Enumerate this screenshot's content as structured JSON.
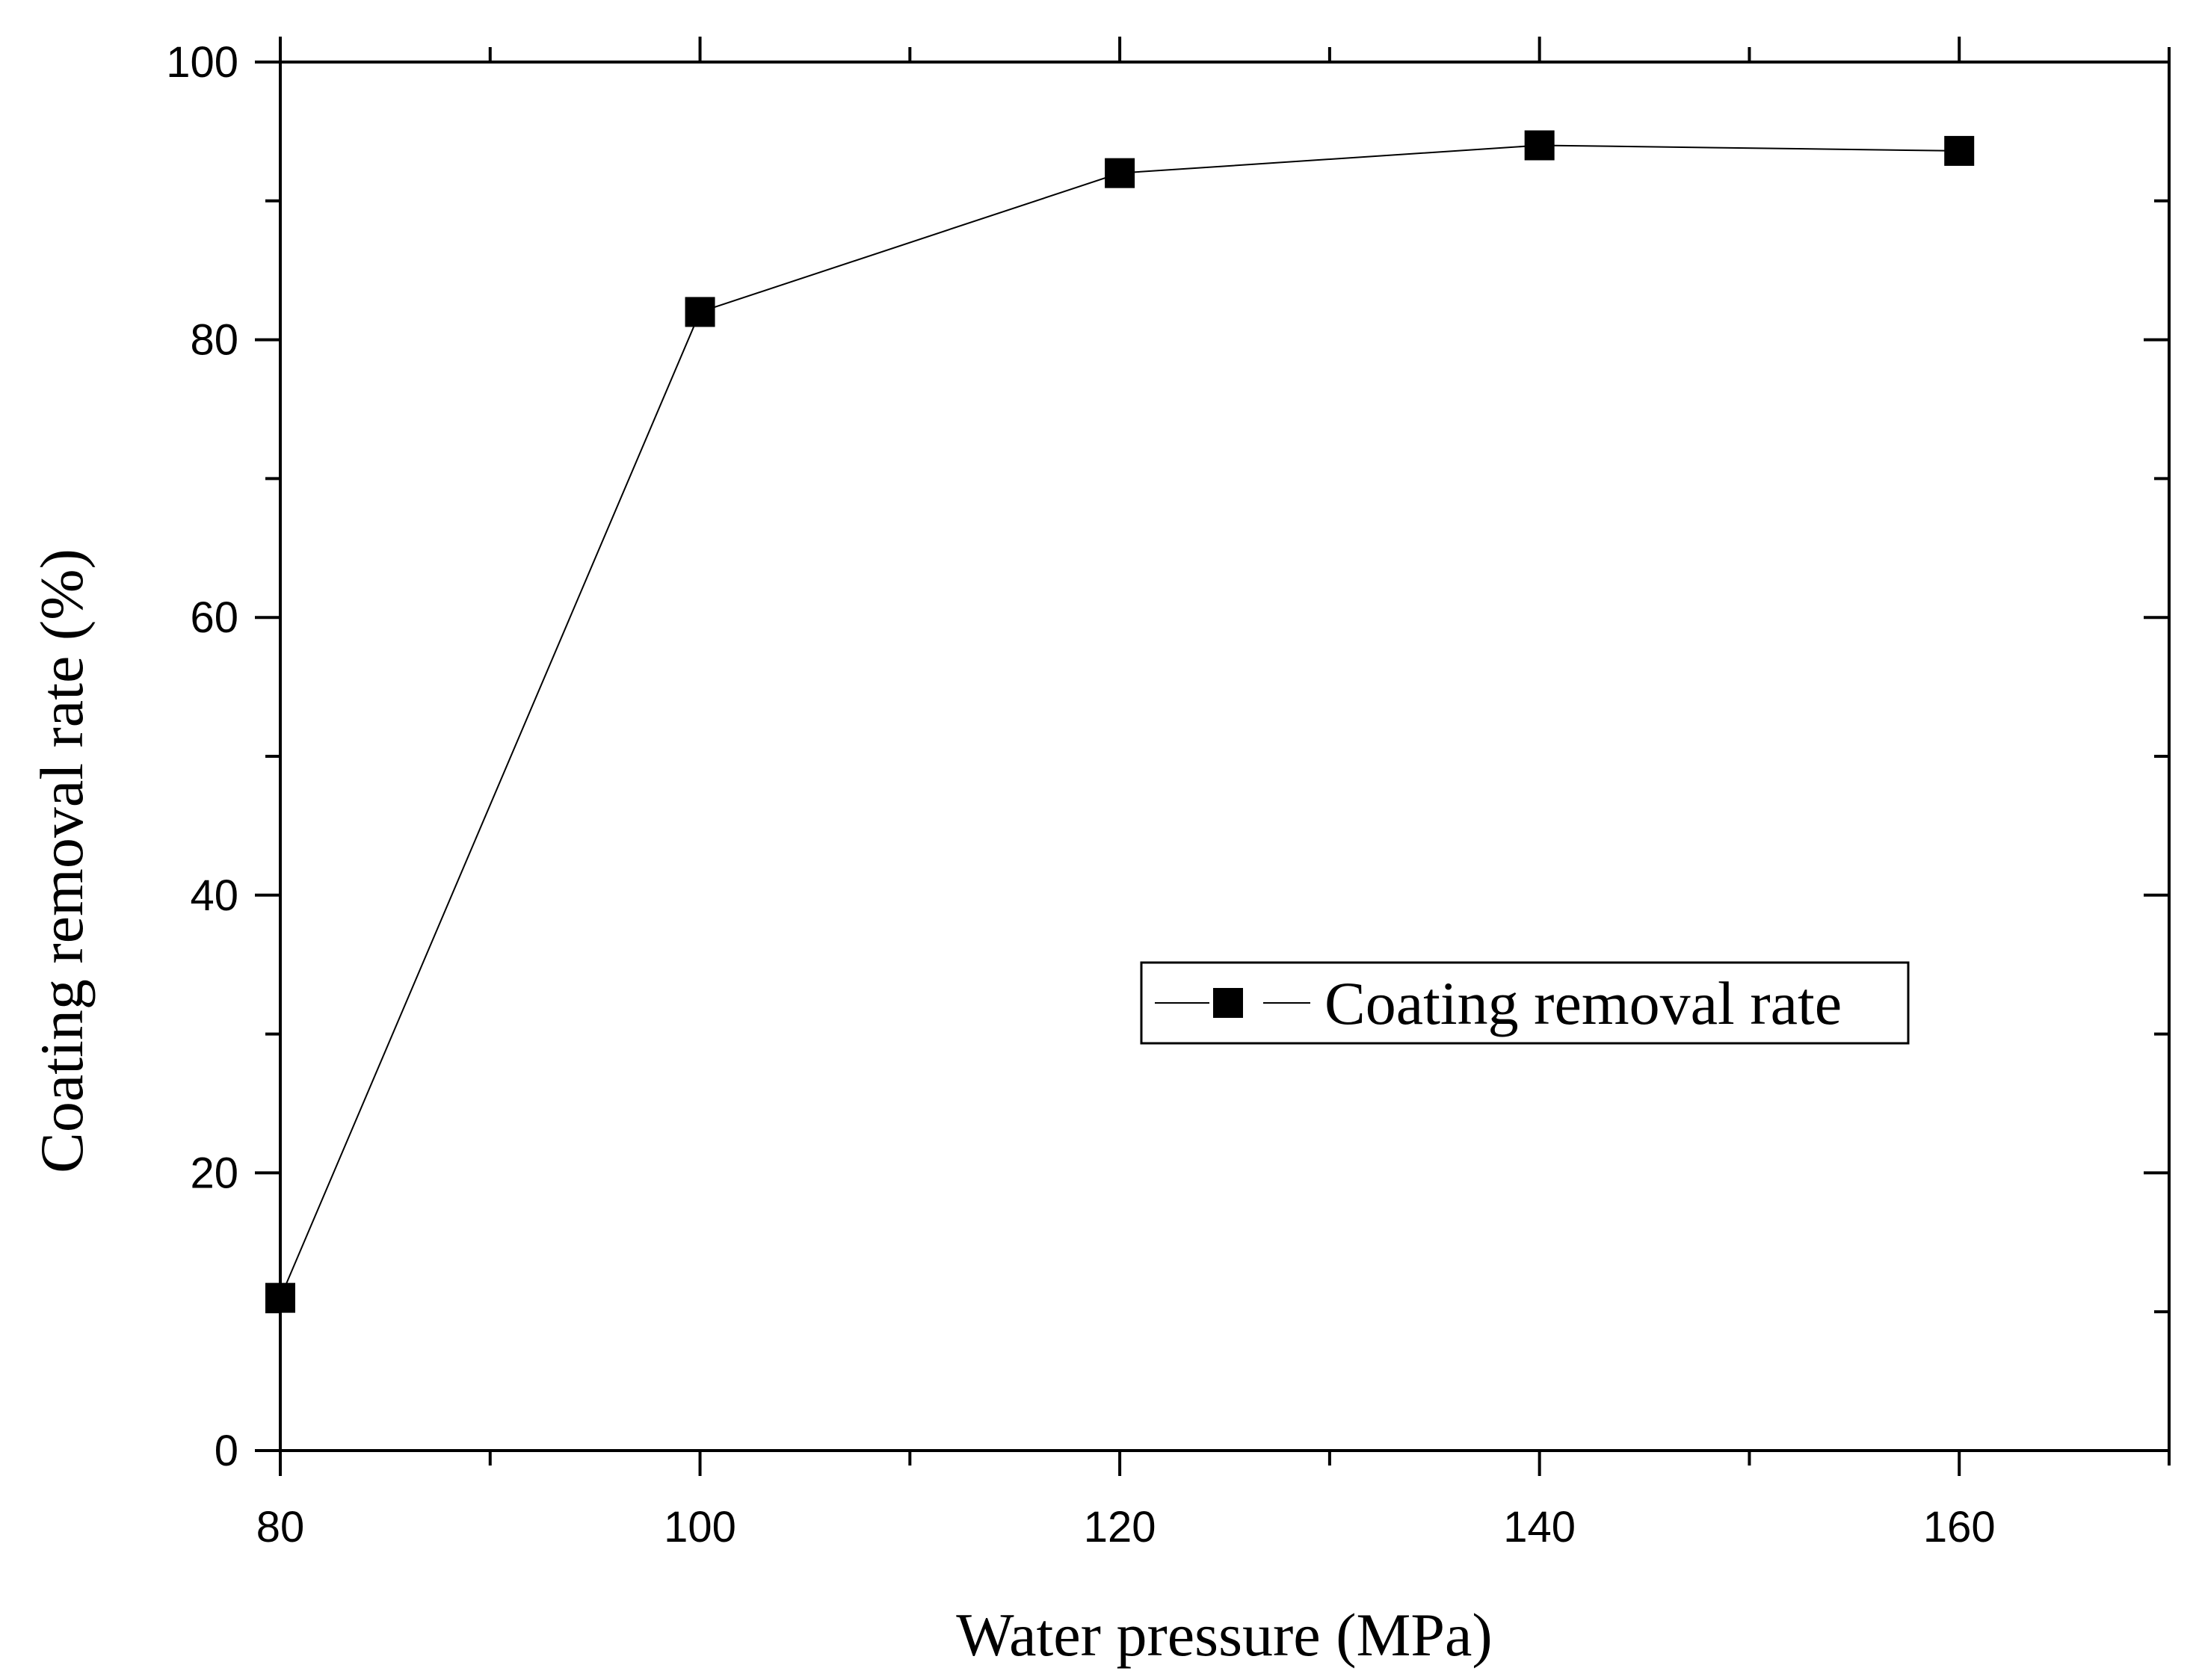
{
  "chart_data": {
    "type": "line",
    "title": "",
    "xlabel": "Water pressure (MPa)",
    "ylabel": "Coating removal rate (%)",
    "xlim": [
      80,
      170
    ],
    "ylim": [
      0,
      100
    ],
    "x_ticks": [
      80,
      100,
      120,
      140,
      160
    ],
    "x_minor_ticks": [
      90,
      110,
      130,
      150,
      170
    ],
    "y_ticks": [
      0,
      20,
      40,
      60,
      80,
      100
    ],
    "y_minor_ticks": [
      10,
      30,
      50,
      70,
      90
    ],
    "x_tick_labels": [
      "80",
      "100",
      "120",
      "140",
      "160"
    ],
    "y_tick_labels": [
      "0",
      "20",
      "40",
      "60",
      "80",
      "100"
    ],
    "series": [
      {
        "name": "Coating removal rate",
        "marker": "square",
        "color": "#000000",
        "x": [
          80,
          100,
          120,
          140,
          160
        ],
        "y": [
          11,
          82,
          92,
          94,
          93.6
        ]
      }
    ],
    "legend": {
      "position": "center-right",
      "entries": [
        "Coating removal rate"
      ]
    },
    "grid": false
  }
}
